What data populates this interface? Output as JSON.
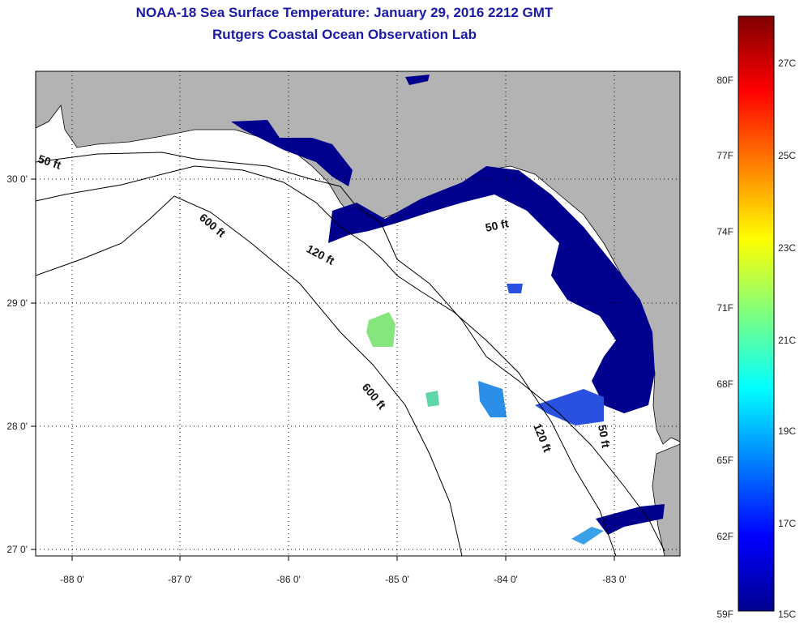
{
  "title": "NOAA-18 Sea Surface Temperature:  January 29, 2016 2212 GMT",
  "subtitle": "Rutgers Coastal Ocean Observation Lab",
  "map": {
    "lon_ticks": [
      "-88 0'",
      "-87 0'",
      "-86 0'",
      "-85 0'",
      "-84 0'",
      "-83 0'"
    ],
    "lat_ticks": [
      "30 0'",
      "29 0'",
      "28 0'",
      "27 0'"
    ],
    "contours": [
      "50 ft",
      "600 ft",
      "120 ft",
      "50 ft",
      "600 ft",
      "120 ft",
      "50 ft"
    ],
    "land_color": "#b3b3b3",
    "water_color": "#ffffff",
    "sst_color_main": "#00008f"
  },
  "colorbar": {
    "fahrenheit": [
      "80F",
      "77F",
      "74F",
      "71F",
      "68F",
      "65F",
      "62F",
      "59F"
    ],
    "celsius": [
      "27C",
      "25C",
      "23C",
      "21C",
      "19C",
      "17C",
      "15C"
    ]
  }
}
